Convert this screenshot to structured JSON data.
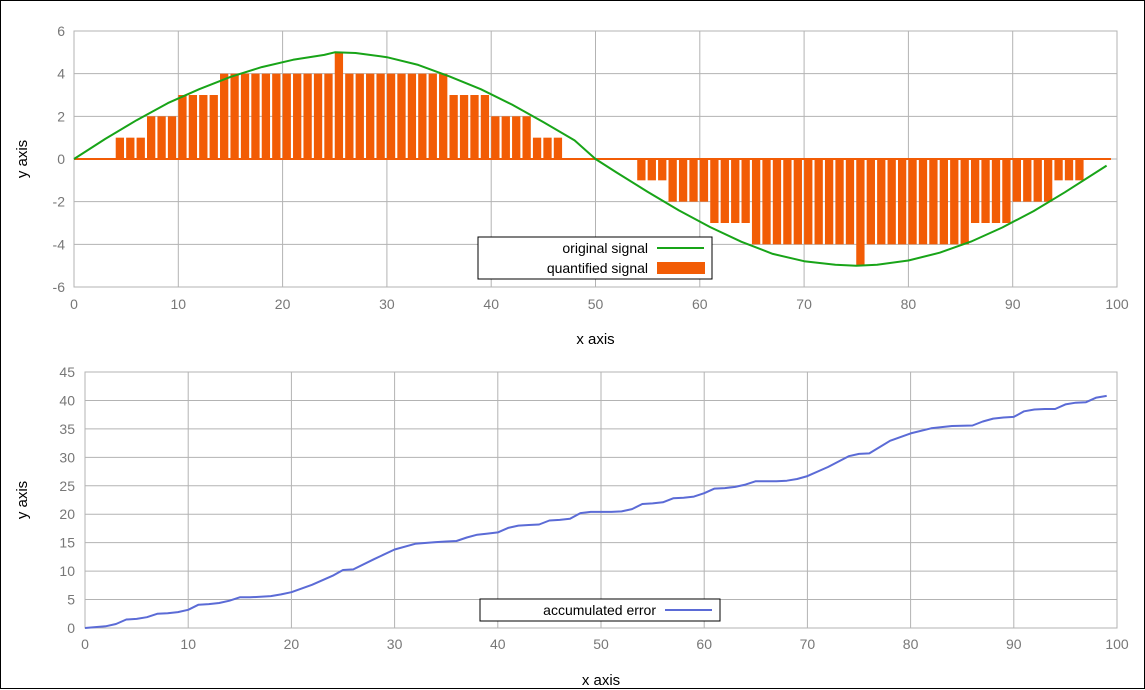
{
  "chart_data": [
    {
      "type": "line",
      "xlabel": "x axis",
      "ylabel": "y axis",
      "xlim": [
        0,
        100
      ],
      "ylim": [
        -6,
        6
      ],
      "x_ticks": [
        0,
        10,
        20,
        30,
        40,
        50,
        60,
        70,
        80,
        90,
        100
      ],
      "y_ticks": [
        6,
        4,
        2,
        0,
        -2,
        -4,
        -6
      ],
      "grid": true,
      "legend_position": "bottom-center",
      "series": [
        {
          "name": "original signal",
          "type": "line",
          "color": "#18a418",
          "x": [
            0,
            3,
            6,
            9,
            12,
            15,
            18,
            21,
            24,
            25,
            27,
            30,
            33,
            36,
            39,
            42,
            45,
            48,
            50,
            52,
            55,
            58,
            61,
            64,
            67,
            70,
            73,
            75,
            77,
            80,
            83,
            86,
            89,
            92,
            95,
            99
          ],
          "values": [
            0,
            0.94,
            1.82,
            2.62,
            3.27,
            3.85,
            4.31,
            4.65,
            4.88,
            5,
            4.97,
            4.77,
            4.41,
            3.87,
            3.27,
            2.55,
            1.73,
            0.87,
            0,
            -0.63,
            -1.54,
            -2.41,
            -3.19,
            -3.88,
            -4.45,
            -4.79,
            -4.96,
            -5,
            -4.96,
            -4.76,
            -4.39,
            -3.87,
            -3.21,
            -2.44,
            -1.56,
            -0.31
          ]
        },
        {
          "name": "quantified signal",
          "type": "bar",
          "color": "#f25c05",
          "x": [
            0,
            1,
            2,
            3,
            4,
            5,
            6,
            7,
            8,
            9,
            10,
            11,
            12,
            13,
            14,
            15,
            16,
            17,
            18,
            19,
            20,
            21,
            22,
            23,
            24,
            25,
            26,
            27,
            28,
            29,
            30,
            31,
            32,
            33,
            34,
            35,
            36,
            37,
            38,
            39,
            40,
            41,
            42,
            43,
            44,
            45,
            46,
            47,
            48,
            49,
            50,
            51,
            52,
            53,
            54,
            55,
            56,
            57,
            58,
            59,
            60,
            61,
            62,
            63,
            64,
            65,
            66,
            67,
            68,
            69,
            70,
            71,
            72,
            73,
            74,
            75,
            76,
            77,
            78,
            79,
            80,
            81,
            82,
            83,
            84,
            85,
            86,
            87,
            88,
            89,
            90,
            91,
            92,
            93,
            94,
            95,
            96,
            97,
            98,
            99
          ],
          "values": [
            0,
            0,
            0,
            0,
            1,
            1,
            1,
            2,
            2,
            2,
            3,
            3,
            3,
            3,
            4,
            4,
            4,
            4,
            4,
            4,
            4,
            4,
            4,
            4,
            4,
            5,
            4,
            4,
            4,
            4,
            4,
            4,
            4,
            4,
            4,
            4,
            3,
            3,
            3,
            3,
            2,
            2,
            2,
            2,
            1,
            1,
            1,
            0,
            0,
            0,
            0,
            0,
            0,
            0,
            -1,
            -1,
            -1,
            -2,
            -2,
            -2,
            -2,
            -3,
            -3,
            -3,
            -3,
            -4,
            -4,
            -4,
            -4,
            -4,
            -4,
            -4,
            -4,
            -4,
            -4,
            -5,
            -4,
            -4,
            -4,
            -4,
            -4,
            -4,
            -4,
            -4,
            -4,
            -4,
            -3,
            -3,
            -3,
            -3,
            -2,
            -2,
            -2,
            -2,
            -1,
            -1,
            -1,
            0,
            0,
            0
          ]
        }
      ]
    },
    {
      "type": "line",
      "xlabel": "x axis",
      "ylabel": "y axis",
      "xlim": [
        0,
        100
      ],
      "ylim": [
        0,
        45
      ],
      "x_ticks": [
        0,
        10,
        20,
        30,
        40,
        50,
        60,
        70,
        80,
        90,
        100
      ],
      "y_ticks": [
        45,
        40,
        35,
        30,
        25,
        20,
        15,
        10,
        5,
        0
      ],
      "grid": true,
      "legend_position": "bottom-center",
      "series": [
        {
          "name": "accumulated error",
          "type": "line",
          "color": "#5b6bd6",
          "x": [
            0,
            2,
            3,
            4,
            5,
            6,
            7,
            8,
            9,
            10,
            11,
            12,
            13,
            14,
            15,
            16,
            17,
            18,
            19,
            20,
            22,
            24,
            25,
            26,
            28,
            30,
            32,
            34,
            35,
            36,
            37,
            38,
            39,
            40,
            41,
            42,
            43,
            44,
            45,
            46,
            47,
            48,
            49,
            50,
            51,
            52,
            53,
            54,
            55,
            56,
            57,
            58,
            59,
            60,
            61,
            62,
            63,
            64,
            65,
            66,
            67,
            68,
            69,
            70,
            72,
            74,
            75,
            76,
            78,
            80,
            82,
            84,
            86,
            87,
            88,
            89,
            90,
            91,
            92,
            93,
            94,
            95,
            96,
            97,
            98,
            99
          ],
          "values": [
            0,
            0.3,
            0.7,
            1.5,
            1.6,
            1.9,
            2.5,
            2.6,
            2.8,
            3.2,
            4.1,
            4.2,
            4.4,
            4.8,
            5.4,
            5.4,
            5.5,
            5.6,
            5.9,
            6.3,
            7.6,
            9.2,
            10.2,
            10.3,
            12.1,
            13.8,
            14.8,
            15.1,
            15.2,
            15.3,
            15.9,
            16.4,
            16.6,
            16.8,
            17.6,
            18,
            18.1,
            18.2,
            18.9,
            19,
            19.2,
            20.2,
            20.4,
            20.4,
            20.4,
            20.5,
            20.9,
            21.8,
            21.9,
            22.1,
            22.8,
            22.9,
            23.1,
            23.7,
            24.5,
            24.6,
            24.8,
            25.2,
            25.8,
            25.8,
            25.8,
            25.9,
            26.2,
            26.7,
            28.3,
            30.2,
            30.6,
            30.7,
            32.9,
            34.2,
            35.1,
            35.5,
            35.6,
            36.3,
            36.8,
            37,
            37.1,
            38.1,
            38.4,
            38.5,
            38.5,
            39.3,
            39.6,
            39.7,
            40.5,
            40.8
          ]
        }
      ]
    }
  ]
}
